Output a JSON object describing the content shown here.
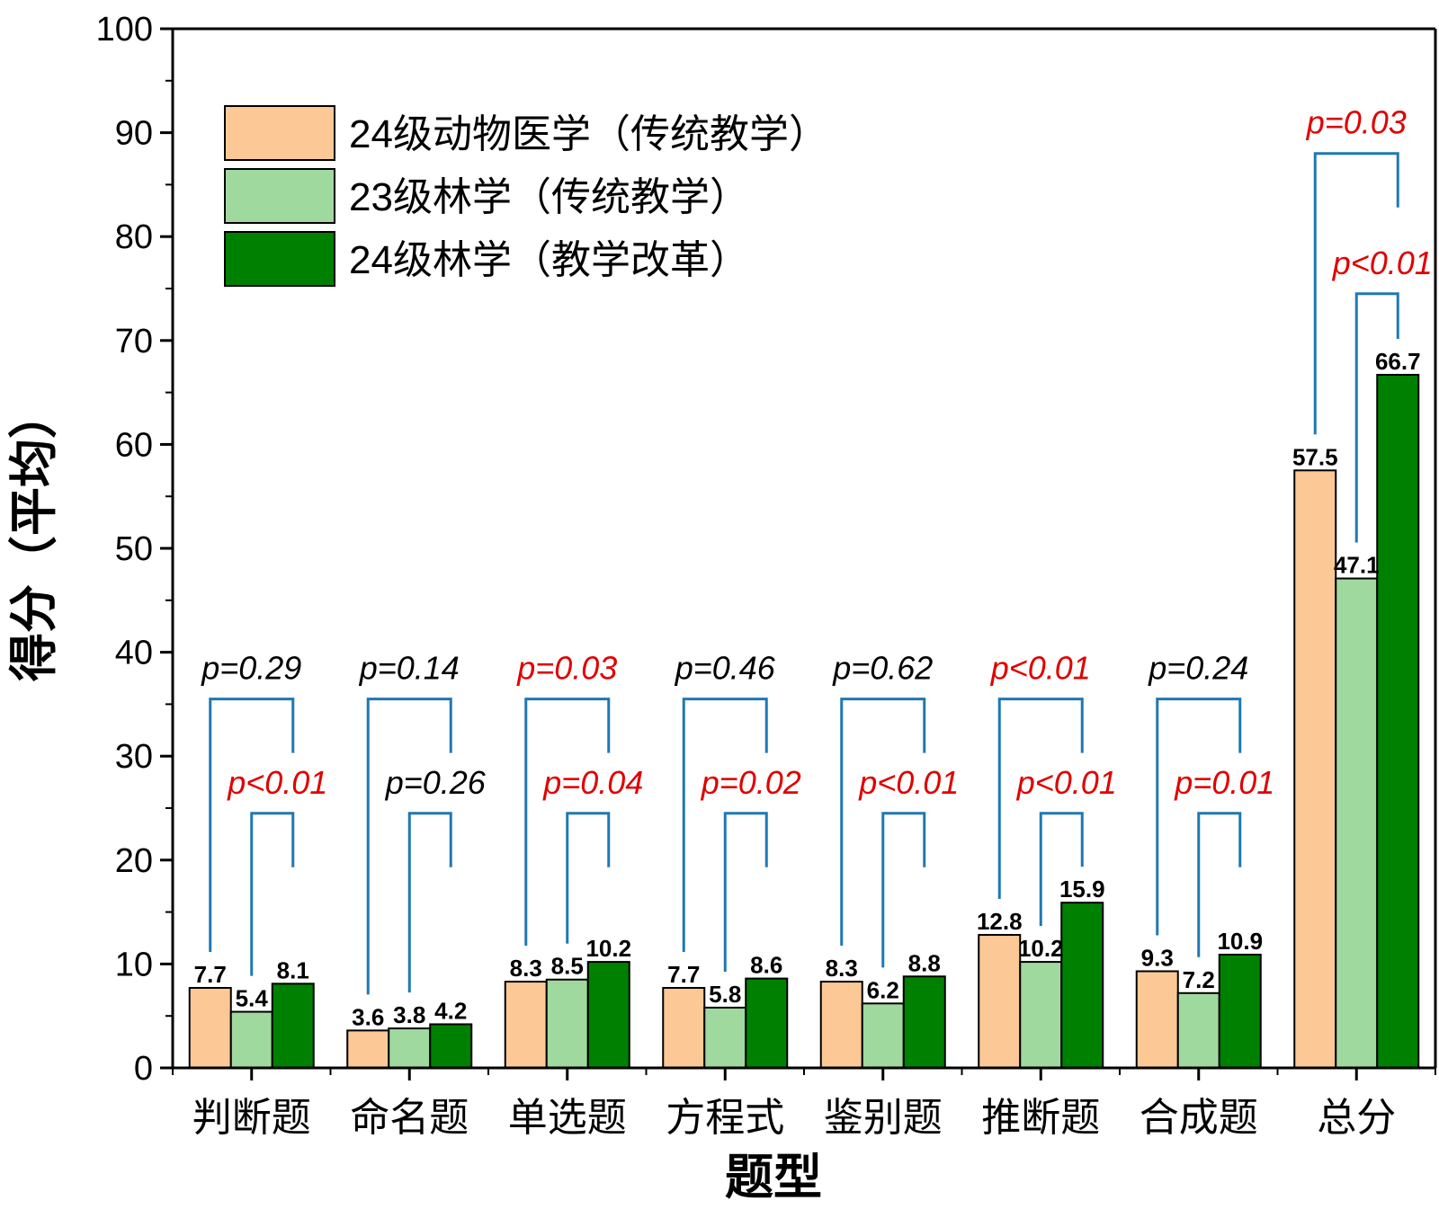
{
  "chart_data": {
    "type": "bar",
    "xlabel": "题型",
    "ylabel": "得分（平均）",
    "ylim": [
      0,
      100
    ],
    "yticks": [
      0,
      10,
      20,
      30,
      40,
      50,
      60,
      70,
      80,
      90,
      100
    ],
    "categories": [
      "判断题",
      "命名题",
      "单选题",
      "方程式",
      "鉴别题",
      "推断题",
      "合成题",
      "总分"
    ],
    "series": [
      {
        "name": "24级动物医学（传统教学）",
        "color": "#FCC996",
        "values": [
          7.7,
          3.6,
          8.3,
          7.7,
          8.3,
          12.8,
          9.3,
          57.5
        ]
      },
      {
        "name": "23级林学（传统教学）",
        "color": "#A0D99E",
        "values": [
          5.4,
          3.8,
          8.5,
          5.8,
          6.2,
          10.2,
          7.2,
          47.1
        ]
      },
      {
        "name": "24级林学（教学改革）",
        "color": "#008000",
        "values": [
          8.1,
          4.2,
          10.2,
          8.6,
          8.8,
          15.9,
          10.9,
          66.7
        ]
      }
    ],
    "data_labels": [
      [
        "7.7",
        "5.4",
        "8.1"
      ],
      [
        "3.6",
        "3.8",
        "4.2"
      ],
      [
        "8.3",
        "8.5",
        "10.2"
      ],
      [
        "7.7",
        "5.8",
        "8.6"
      ],
      [
        "8.3",
        "6.2",
        "8.8"
      ],
      [
        "12.8",
        "10.2",
        "15.9"
      ],
      [
        "9.3",
        "7.2",
        "10.9"
      ],
      [
        "57.5",
        "47.1",
        "66.7"
      ]
    ],
    "bracket_color": "#1F78B4",
    "significance_color": "#E00000",
    "nonsignificance_color": "#000000",
    "comparisons": [
      {
        "outer": {
          "text": "p=0.29",
          "significant": false,
          "y": 35.5
        },
        "inner": {
          "text": "p<0.01",
          "significant": true,
          "y": 24.5
        }
      },
      {
        "outer": {
          "text": "p=0.14",
          "significant": false,
          "y": 35.5
        },
        "inner": {
          "text": "p=0.26",
          "significant": false,
          "y": 24.5
        }
      },
      {
        "outer": {
          "text": "p=0.03",
          "significant": true,
          "y": 35.5
        },
        "inner": {
          "text": "p=0.04",
          "significant": true,
          "y": 24.5
        }
      },
      {
        "outer": {
          "text": "p=0.46",
          "significant": false,
          "y": 35.5
        },
        "inner": {
          "text": "p=0.02",
          "significant": true,
          "y": 24.5
        }
      },
      {
        "outer": {
          "text": "p=0.62",
          "significant": false,
          "y": 35.5
        },
        "inner": {
          "text": "p<0.01",
          "significant": true,
          "y": 24.5
        }
      },
      {
        "outer": {
          "text": "p<0.01",
          "significant": true,
          "y": 35.5
        },
        "inner": {
          "text": "p<0.01",
          "significant": true,
          "y": 24.5
        }
      },
      {
        "outer": {
          "text": "p=0.24",
          "significant": false,
          "y": 35.5
        },
        "inner": {
          "text": "p=0.01",
          "significant": true,
          "y": 24.5
        }
      },
      {
        "outer": {
          "text": "p=0.03",
          "significant": true,
          "y": 88
        },
        "inner": {
          "text": "p<0.01",
          "significant": true,
          "y": 74.5
        }
      }
    ],
    "legend_position": "top-left",
    "grid": false
  }
}
